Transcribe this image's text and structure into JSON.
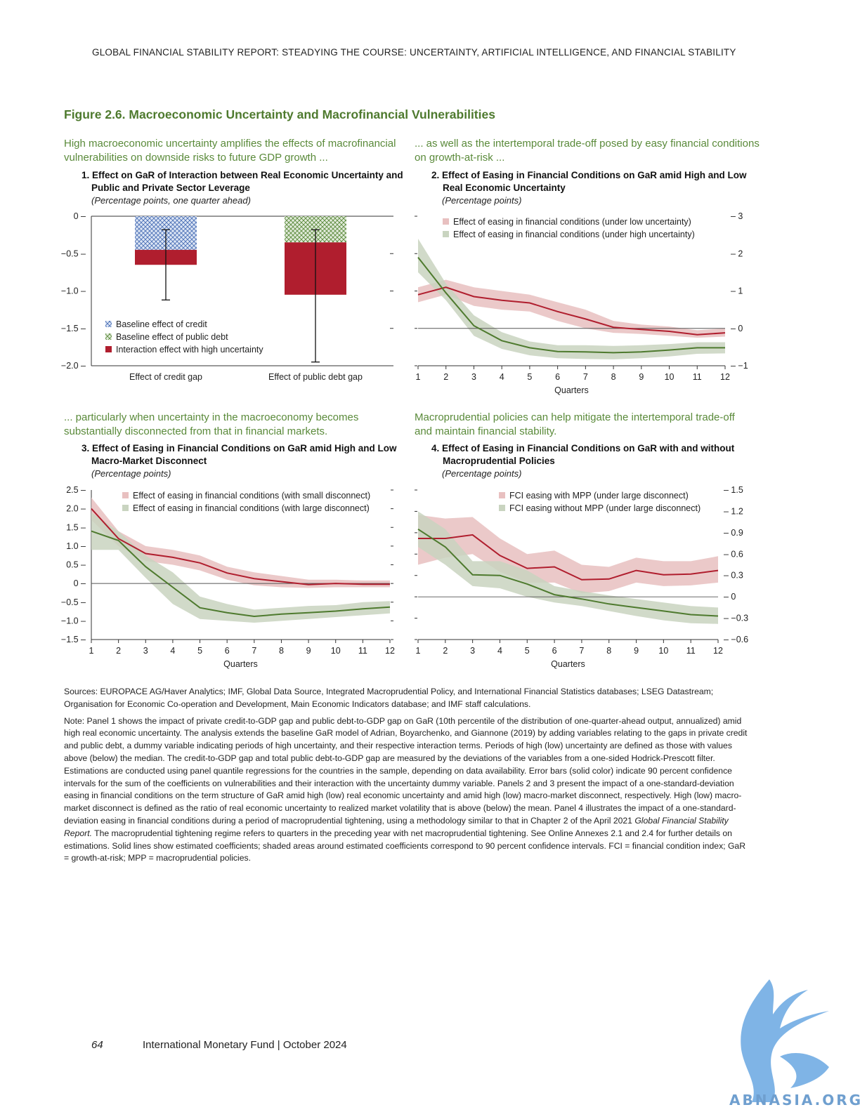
{
  "header": {
    "running_head": "GLOBAL FINANCIAL STABILITY REPORT: STEADYING THE COURSE: UNCERTAINTY, ARTIFICIAL INTELLIGENCE, AND FINANCIAL STABILITY"
  },
  "figure": {
    "title": "Figure 2.6. Macroeconomic Uncertainty and Macrofinancial Vulnerabilities"
  },
  "panels": [
    {
      "lead_1": "High macroeconomic uncertainty amplifies the effects of macrofinancial",
      "lead_2": "vulnerabilities on downside risks to future GDP growth ...",
      "title_1": "1. Effect on GaR of Interaction between Real Economic Uncertainty and",
      "title_2": "Public and Private Sector Leverage",
      "subtitle": "(Percentage points, one quarter ahead)"
    },
    {
      "lead_1": "... as well as the intertemporal trade-off posed by easy financial conditions",
      "lead_2": "on growth-at-risk ...",
      "title_1": "2. Effect of Easing in Financial Conditions on GaR amid High and Low",
      "title_2": "Real Economic Uncertainty",
      "subtitle": "(Percentage points)"
    },
    {
      "lead_1": "... particularly when uncertainty in the macroeconomy becomes",
      "lead_2": "substantially disconnected from that in financial markets.",
      "title_1": "3. Effect of Easing in Financial Conditions on GaR amid High and Low",
      "title_2": "Macro-Market Disconnect",
      "subtitle": "(Percentage points)"
    },
    {
      "lead_1": "Macroprudential policies can help mitigate the intertemporal trade-off",
      "lead_2": "and maintain financial stability.",
      "title_1": "4. Effect of Easing in Financial Conditions on GaR with and without",
      "title_2": "Macroprudential Policies",
      "subtitle": "(Percentage points)"
    }
  ],
  "chart_data": [
    {
      "type": "bar",
      "categories": [
        "Effect of credit gap",
        "Effect of public debt gap"
      ],
      "series": [
        {
          "name": "Baseline effect of credit",
          "values": [
            -0.45,
            null
          ],
          "color": "#4a6fb5",
          "pattern": "crosshatch"
        },
        {
          "name": "Baseline effect of public debt",
          "values": [
            null,
            -0.35
          ],
          "color": "#5a8a3a",
          "pattern": "crosshatch"
        },
        {
          "name": "Interaction effect with high uncertainty",
          "values": [
            -0.2,
            -0.7
          ],
          "color": "#b01e2e"
        }
      ],
      "error_bars": [
        {
          "center": -0.65,
          "low": -1.12,
          "high": -0.18
        },
        {
          "center": -1.05,
          "low": -1.95,
          "high": -0.18
        }
      ],
      "yticks": [
        "0",
        "−0.5",
        "−1.0",
        "−1.5",
        "−2.0"
      ],
      "ylim": [
        -2.0,
        0
      ]
    },
    {
      "type": "line",
      "x": [
        1,
        2,
        3,
        4,
        5,
        6,
        7,
        8,
        9,
        10,
        11,
        12
      ],
      "xlabel": "Quarters",
      "ylim": [
        -1,
        3
      ],
      "yticks": [
        "3",
        "2",
        "1",
        "0",
        "−1"
      ],
      "series": [
        {
          "name": "Effect of easing in financial conditions (under low uncertainty)",
          "color": "#b01e2e",
          "band_color": "#e8c0c0",
          "values": [
            0.9,
            1.1,
            0.85,
            0.75,
            0.68,
            0.45,
            0.25,
            0.03,
            -0.03,
            -0.08,
            -0.17,
            -0.12
          ],
          "lower": [
            0.7,
            0.9,
            0.6,
            0.5,
            0.45,
            0.2,
            0.0,
            -0.12,
            -0.15,
            -0.2,
            -0.25,
            -0.22
          ],
          "upper": [
            1.1,
            1.3,
            1.1,
            1.0,
            0.9,
            0.7,
            0.5,
            0.2,
            0.1,
            0.05,
            -0.05,
            0.0
          ]
        },
        {
          "name": "Effect of easing in financial conditions (under high uncertainty)",
          "color": "#4e7a2e",
          "band_color": "#c9d4c0",
          "values": [
            1.9,
            0.95,
            0.07,
            -0.33,
            -0.52,
            -0.62,
            -0.63,
            -0.65,
            -0.63,
            -0.58,
            -0.52,
            -0.52
          ],
          "lower": [
            1.5,
            0.75,
            -0.2,
            -0.55,
            -0.72,
            -0.8,
            -0.82,
            -0.83,
            -0.8,
            -0.75,
            -0.68,
            -0.67
          ],
          "upper": [
            2.4,
            1.2,
            0.35,
            -0.1,
            -0.35,
            -0.45,
            -0.45,
            -0.47,
            -0.45,
            -0.42,
            -0.37,
            -0.37
          ]
        }
      ]
    },
    {
      "type": "line",
      "x": [
        1,
        2,
        3,
        4,
        5,
        6,
        7,
        8,
        9,
        10,
        11,
        12
      ],
      "xlabel": "Quarters",
      "ylim": [
        -1.5,
        2.5
      ],
      "yticks": [
        "2.5",
        "2.0",
        "1.5",
        "1.0",
        "0.5",
        "0",
        "−0.5",
        "−1.0",
        "−1.5"
      ],
      "series": [
        {
          "name": "Effect of easing in financial conditions (with small disconnect)",
          "color": "#b01e2e",
          "band_color": "#e8c0c0",
          "values": [
            2.0,
            1.2,
            0.8,
            0.7,
            0.55,
            0.28,
            0.13,
            0.05,
            -0.03,
            0.0,
            -0.02,
            -0.02
          ],
          "lower": [
            1.7,
            1.0,
            0.6,
            0.5,
            0.35,
            0.1,
            -0.05,
            -0.1,
            -0.12,
            -0.1,
            -0.1,
            -0.1
          ],
          "upper": [
            2.3,
            1.4,
            1.0,
            0.9,
            0.75,
            0.45,
            0.3,
            0.2,
            0.1,
            0.1,
            0.08,
            0.08
          ]
        },
        {
          "name": "Effect of easing in financial conditions (with large disconnect)",
          "color": "#4e7a2e",
          "band_color": "#c9d4c0",
          "values": [
            1.4,
            1.15,
            0.45,
            -0.1,
            -0.65,
            -0.78,
            -0.88,
            -0.82,
            -0.78,
            -0.74,
            -0.68,
            -0.63
          ],
          "lower": [
            0.9,
            0.9,
            0.15,
            -0.55,
            -0.95,
            -1.0,
            -1.05,
            -1.0,
            -0.95,
            -0.9,
            -0.85,
            -0.8
          ],
          "upper": [
            1.9,
            1.4,
            0.75,
            0.3,
            -0.35,
            -0.55,
            -0.7,
            -0.65,
            -0.6,
            -0.58,
            -0.5,
            -0.47
          ]
        }
      ]
    },
    {
      "type": "line",
      "x": [
        1,
        2,
        3,
        4,
        5,
        6,
        7,
        8,
        9,
        10,
        11,
        12
      ],
      "xlabel": "Quarters",
      "ylim": [
        -0.6,
        1.5
      ],
      "yticks": [
        "1.5",
        "1.2",
        "0.9",
        "0.6",
        "0.3",
        "0",
        "−0.3",
        "−0.6"
      ],
      "series": [
        {
          "name": "FCI easing with MPP (under large disconnect)",
          "color": "#b01e2e",
          "band_color": "#e8c0c0",
          "values": [
            0.82,
            0.82,
            0.87,
            0.58,
            0.4,
            0.42,
            0.24,
            0.25,
            0.37,
            0.31,
            0.32,
            0.37
          ],
          "lower": [
            0.45,
            0.55,
            0.6,
            0.35,
            0.2,
            0.2,
            0.05,
            0.08,
            0.2,
            0.15,
            0.16,
            0.2
          ],
          "upper": [
            1.15,
            1.1,
            1.12,
            0.82,
            0.6,
            0.65,
            0.45,
            0.42,
            0.55,
            0.5,
            0.5,
            0.57
          ]
        },
        {
          "name": "FCI easing without MPP (under large disconnect)",
          "color": "#4e7a2e",
          "band_color": "#c9d4c0",
          "values": [
            0.95,
            0.7,
            0.31,
            0.3,
            0.18,
            0.03,
            -0.03,
            -0.1,
            -0.15,
            -0.2,
            -0.25,
            -0.27
          ],
          "lower": [
            0.7,
            0.45,
            0.15,
            0.12,
            0.0,
            -0.08,
            -0.13,
            -0.2,
            -0.27,
            -0.33,
            -0.37,
            -0.38
          ],
          "upper": [
            1.2,
            0.95,
            0.5,
            0.5,
            0.37,
            0.15,
            0.08,
            0.02,
            -0.03,
            -0.08,
            -0.13,
            -0.15
          ]
        }
      ]
    }
  ],
  "notes": {
    "sources": "Sources: EUROPACE AG/Haver Analytics; IMF, Global Data Source, Integrated Macroprudential Policy, and International Financial Statistics databases; LSEG Datastream; Organisation for Economic Co-operation and Development, Main Economic Indicators database; and IMF staff calculations.",
    "note_before": "Note: Panel 1 shows the impact of private credit-to-GDP gap and public debt-to-GDP gap on GaR (10th percentile of the distribution of one-quarter-ahead output, annualized) amid high real economic uncertainty. The analysis extends the baseline GaR model of Adrian, Boyarchenko, and Giannone (2019) by adding variables relating to the gaps in private credit and public debt, a dummy variable indicating periods of high uncertainty, and their respective interaction terms. Periods of high (low) uncertainty are defined as those with values above (below) the median. The credit-to-GDP gap and total public debt-to-GDP gap are measured by the deviations of the variables from a one-sided Hodrick-Prescott filter. Estimations are conducted using panel quantile regressions for the countries in the sample, depending on data availability. Error bars (solid color) indicate 90 percent confidence intervals for the sum of the coefficients on vulnerabilities and their interaction with the uncertainty dummy variable. Panels 2 and 3 present the impact of a one-standard-deviation easing in financial conditions on the term structure of GaR amid high (low) real economic uncertainty and amid high (low) macro-market disconnect, respectively. High (low) macro-market disconnect is defined as the ratio of real economic uncertainty to realized market volatility that is above (below) the mean. Panel 4 illustrates the impact of a one-standard-deviation easing in financial conditions during a period of macroprudential tightening, using a methodology similar to that in Chapter 2 of the April 2021 ",
    "note_italic": "Global Financial Stability Report.",
    "note_after": " The macroprudential tightening regime refers to quarters in the preceding year with net macroprudential tightening. See Online Annexes 2.1 and 2.4 for further details on estimations. Solid lines show estimated coefficients; shaded areas around estimated coefficients correspond to 90 percent confidence intervals. FCI = financial condition index; GaR = growth-at-risk; MPP = macroprudential policies."
  },
  "footer": {
    "page_number": "64",
    "text": "International Monetary Fund | October 2024"
  },
  "watermark": {
    "text": "ABNASIA.ORG"
  }
}
